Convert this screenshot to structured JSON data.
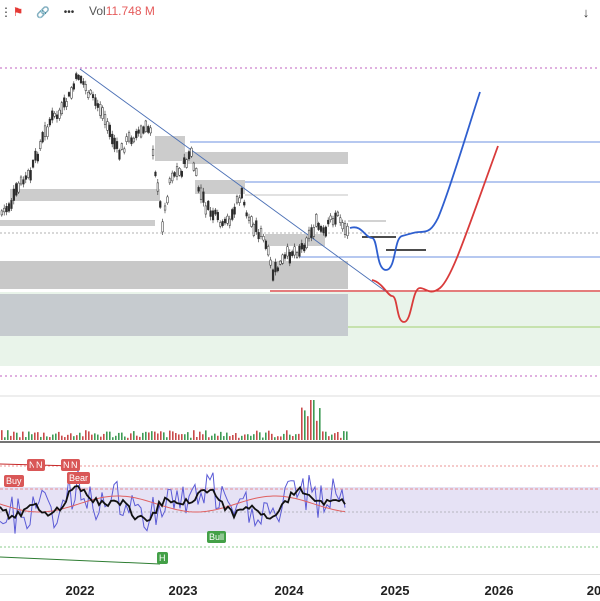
{
  "toolbar": {
    "items": [
      {
        "name": "more-dots-icon",
        "glyph": "⋮"
      },
      {
        "name": "flag-icon",
        "glyph": "⚑"
      },
      {
        "name": "link-icon",
        "glyph": "🔗"
      },
      {
        "name": "more-horizontal-icon",
        "glyph": "•••"
      }
    ],
    "volume_label": "Vol",
    "volume_value": "11.748 M",
    "down_arrow": "↓"
  },
  "axis": {
    "years": [
      "2022",
      "2023",
      "2024",
      "2025",
      "2026",
      "20"
    ]
  },
  "tags": {
    "buy": "Buy",
    "bear": "Bear",
    "bull": "Bull",
    "n1": "N",
    "n2": "N",
    "n3": "N",
    "n4": "N",
    "h": "H"
  },
  "colors": {
    "up": "#26a69a",
    "down": "#ef5350",
    "projection_blue": "#3366cc",
    "projection_red": "#d93b3b"
  }
}
